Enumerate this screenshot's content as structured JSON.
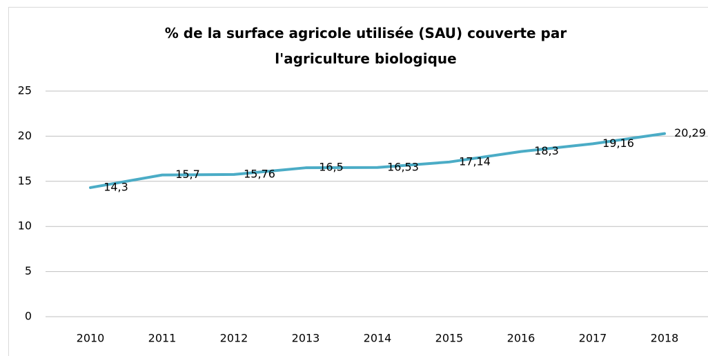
{
  "chart_data": {
    "type": "line",
    "title": "% de la surface agricole utilisée (SAU) couverte par l'agriculture biologique",
    "categories": [
      "2010",
      "2011",
      "2012",
      "2013",
      "2014",
      "2015",
      "2016",
      "2017",
      "2018"
    ],
    "series": [
      {
        "color": "#4bacc6",
        "values": [
          14.3,
          15.7,
          15.76,
          16.5,
          16.53,
          17.14,
          18.3,
          19.16,
          20.29
        ],
        "value_labels": [
          "14,3",
          "15,7",
          "15,76",
          "16,5",
          "16,53",
          "17,14",
          "18,3",
          "19,16",
          "20,29"
        ]
      }
    ],
    "ylim": [
      0,
      25
    ],
    "yticks": [
      0,
      5,
      10,
      15,
      20,
      25
    ],
    "grid": true
  }
}
